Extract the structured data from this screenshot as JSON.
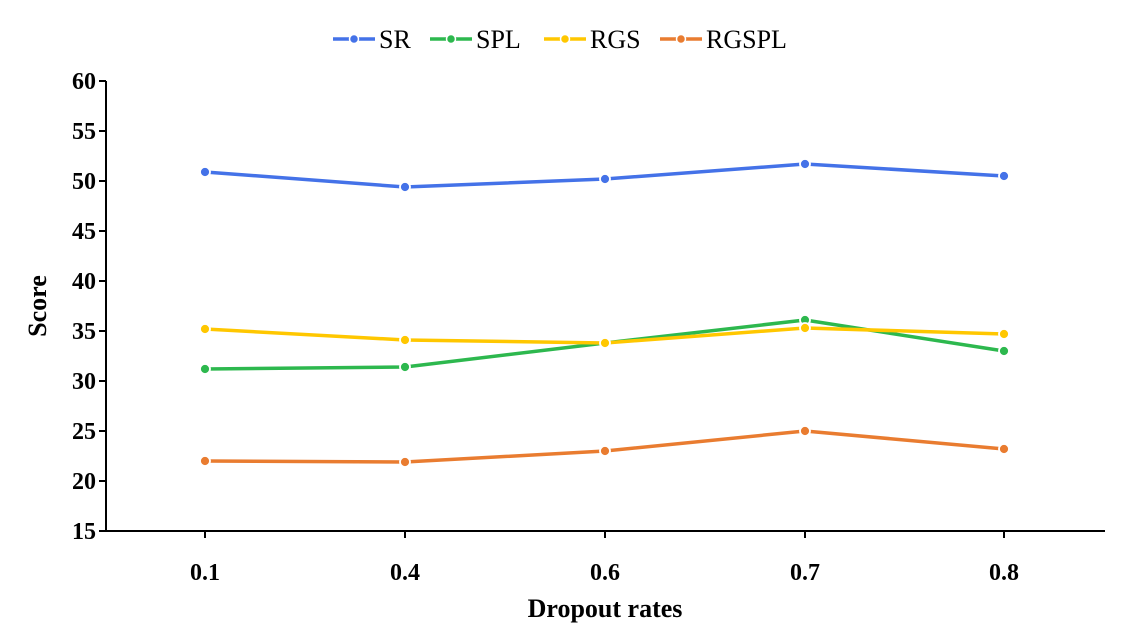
{
  "chart_data": {
    "type": "line",
    "title": "",
    "xlabel": "Dropout rates",
    "ylabel": "Score",
    "categories": [
      "0.1",
      "0.4",
      "0.6",
      "0.7",
      "0.8"
    ],
    "ylim": [
      15,
      60
    ],
    "yticks": [
      15,
      20,
      25,
      30,
      35,
      40,
      45,
      50,
      55,
      60
    ],
    "grid": false,
    "legend_position": "top-center",
    "series": [
      {
        "name": "SR",
        "color": "#4472E8",
        "values": [
          50.9,
          49.4,
          50.2,
          51.7,
          50.5
        ]
      },
      {
        "name": "SPL",
        "color": "#2DB84E",
        "values": [
          31.2,
          31.4,
          33.8,
          36.1,
          33.0
        ]
      },
      {
        "name": "RGS",
        "color": "#FFC700",
        "values": [
          35.2,
          34.1,
          33.8,
          35.3,
          34.7
        ]
      },
      {
        "name": "RGSPL",
        "color": "#E97C30",
        "values": [
          22.0,
          21.9,
          23.0,
          25.0,
          23.2
        ]
      }
    ]
  }
}
